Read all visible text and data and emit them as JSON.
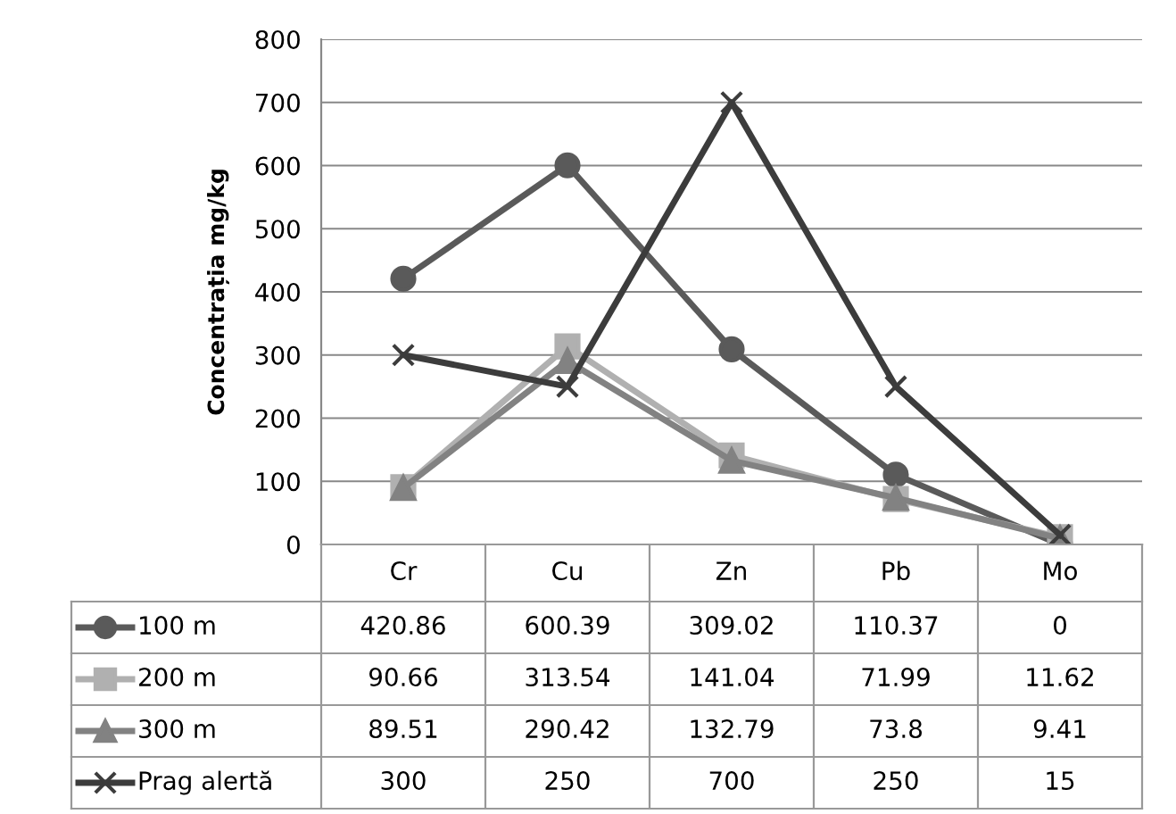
{
  "chart_data": {
    "type": "line",
    "ylabel": "Concentrația mg/kg",
    "categories": [
      "Cr",
      "Cu",
      "Zn",
      "Pb",
      "Mo"
    ],
    "series": [
      {
        "name": "100 m",
        "color": "#5a5a5a",
        "marker": "circle",
        "values": [
          420.86,
          600.39,
          309.02,
          110.37,
          0
        ]
      },
      {
        "name": "200 m",
        "color": "#b0b0b0",
        "marker": "square",
        "values": [
          90.66,
          313.54,
          141.04,
          71.99,
          11.62
        ]
      },
      {
        "name": "300 m",
        "color": "#828282",
        "marker": "triangle",
        "values": [
          89.51,
          290.42,
          132.79,
          73.8,
          9.41
        ]
      },
      {
        "name": "Prag alertă",
        "color": "#3c3c3c",
        "marker": "cross",
        "values": [
          300,
          250,
          700,
          250,
          15
        ]
      }
    ],
    "ylim": [
      0,
      800
    ],
    "yticks": [
      0,
      100,
      200,
      300,
      400,
      500,
      600,
      700,
      800
    ],
    "grid": "y",
    "legend": "bottom left",
    "data_labels": true
  }
}
